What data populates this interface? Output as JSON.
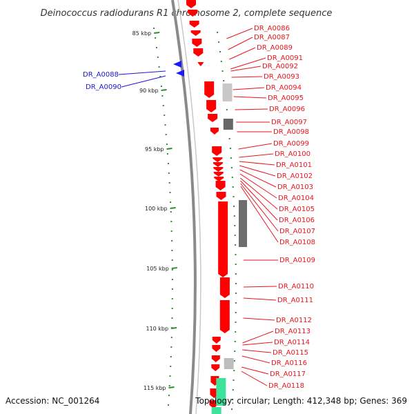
{
  "title": "Deinococcus radiodurans R1 chromosome 2, complete sequence",
  "footer": {
    "accession": "Accession: NC_001264",
    "stats": "Topology: circular; Length: 412,348 bp; Genes: 369"
  },
  "ticks": [
    "85 kbp",
    "90 kbp",
    "95 kbp",
    "100 kbp",
    "105 kbp",
    "110 kbp",
    "115 kbp"
  ],
  "genes_right": [
    "DR_A0086",
    "DR_A0087",
    "DR_A0089",
    "DR_A0091",
    "DR_A0092",
    "DR_A0093",
    "DR_A0094",
    "DR_A0095",
    "DR_A0096",
    "DR_A0097",
    "DR_A0098",
    "DR_A0099",
    "DR_A0100",
    "DR_A0101",
    "DR_A0102",
    "DR_A0103",
    "DR_A0104",
    "DR_A0105",
    "DR_A0106",
    "DR_A0107",
    "DR_A0108",
    "DR_A0109",
    "DR_A0110",
    "DR_A0111",
    "DR_A0112",
    "DR_A0113",
    "DR_A0114",
    "DR_A0115",
    "DR_A0116",
    "DR_A0117",
    "DR_A0118"
  ],
  "genes_left": [
    "DR_A0088",
    "DR_A0090"
  ],
  "colors": {
    "cds": "#ff0000",
    "cds_reverse": "#1a1aff",
    "backbone": "#888888",
    "gc_dots": "#2e8b2e",
    "label_red": "#e8141b",
    "label_blue": "#1d16cf"
  }
}
